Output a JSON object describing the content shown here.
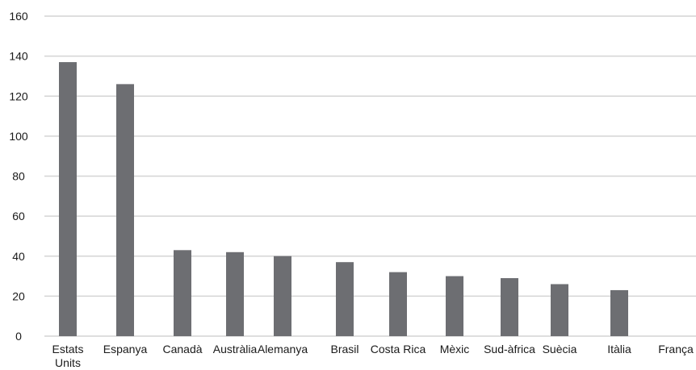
{
  "chart_data": {
    "type": "bar",
    "title": "",
    "xlabel": "",
    "ylabel": "",
    "ylim": [
      0,
      160
    ],
    "y_ticks": [
      0,
      20,
      40,
      60,
      80,
      100,
      120,
      140,
      160
    ],
    "grid": true,
    "categories": [
      "Estats Units",
      "Espanya",
      "Canadà",
      "Austràlia",
      "Alemanya",
      "Brasil",
      "Costa Rica",
      "Mèxic",
      "Sud-àfrica",
      "Suècia",
      "Itàlia",
      "França"
    ],
    "values": [
      137,
      126,
      43,
      42,
      40,
      37,
      32,
      30,
      29,
      26,
      23,
      0
    ],
    "colors": {
      "bar": "#6d6e72",
      "grid": "#d4d4d4"
    }
  }
}
